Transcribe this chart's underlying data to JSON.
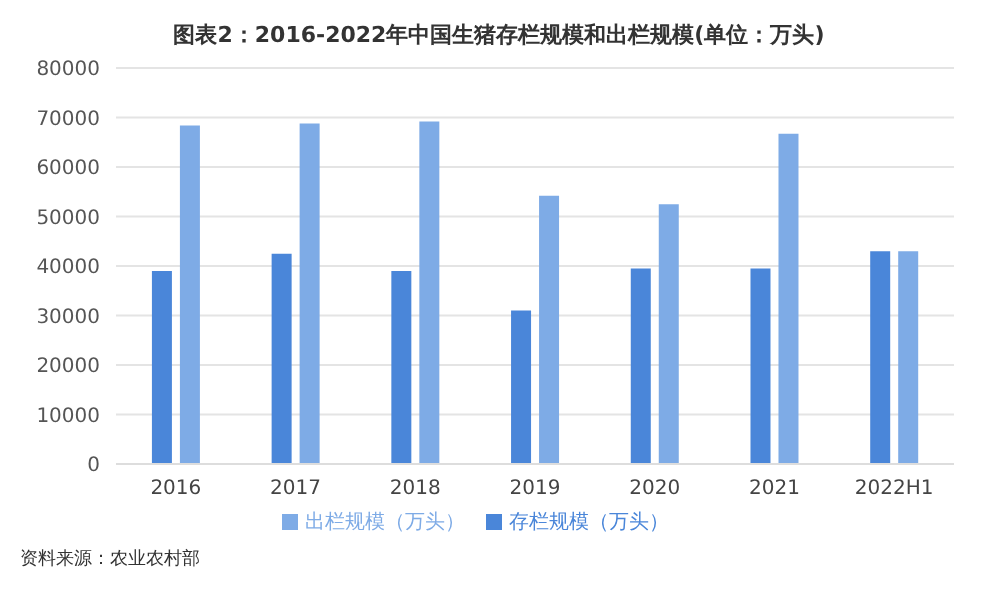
{
  "chart_data": {
    "type": "bar",
    "title": "图表2：2016-2022年中国生猪存栏规模和出栏规模(单位：万头)",
    "categories": [
      "2016",
      "2017",
      "2018",
      "2019",
      "2020",
      "2021",
      "2022H1"
    ],
    "series": [
      {
        "name": "存栏规模（万头）",
        "color": "#4a86d9",
        "values": [
          39000,
          42500,
          39000,
          31000,
          39500,
          39500,
          43000
        ]
      },
      {
        "name": "出栏规模（万头）",
        "color": "#7eabe6",
        "values": [
          68400,
          68800,
          69200,
          54200,
          52500,
          66700,
          43000
        ]
      }
    ],
    "ylim": [
      0,
      80000
    ],
    "yticks": [
      0,
      10000,
      20000,
      30000,
      40000,
      50000,
      60000,
      70000,
      80000
    ],
    "grid": "y",
    "legend": "bottom",
    "annotations": [
      "资料来源：农业农村部"
    ]
  }
}
